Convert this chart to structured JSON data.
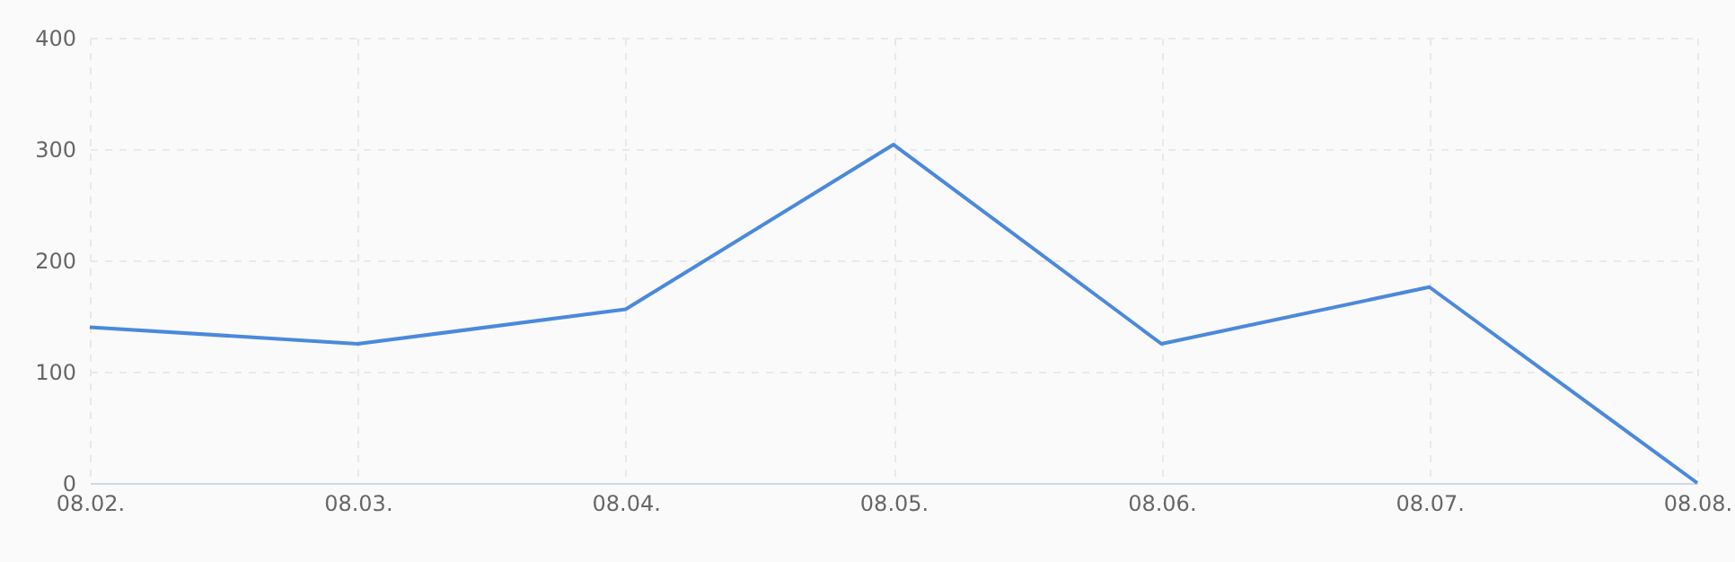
{
  "chart_data": {
    "type": "line",
    "categories": [
      "08.02.",
      "08.03.",
      "08.04.",
      "08.05.",
      "08.06.",
      "08.07.",
      "08.08."
    ],
    "series": [
      {
        "color": "#4a89dc",
        "values": [
          140,
          125,
          156,
          304,
          125,
          176,
          0
        ]
      }
    ],
    "ylim": [
      0,
      400
    ],
    "yticks": [
      0,
      100,
      200,
      300,
      400
    ],
    "grid": true,
    "marker": "none",
    "line_style": "solid"
  }
}
